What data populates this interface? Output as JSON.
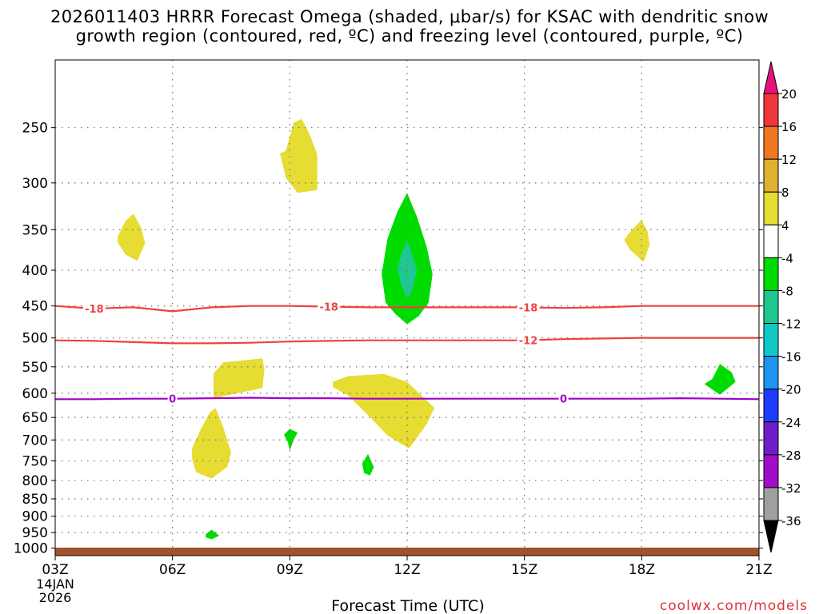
{
  "chart_data": {
    "type": "contour",
    "title_line1": "2026011403 HRRR Forecast Omega (shaded, μbar/s) for KSAC with dendritic snow",
    "title_line2": "growth region (contoured, red, ºC) and freezing level (contoured, purple, ºC)",
    "xlabel": "Forecast Time (UTC)",
    "x_ticks": [
      "03Z",
      "06Z",
      "09Z",
      "12Z",
      "15Z",
      "18Z",
      "21Z"
    ],
    "x_tick_hours": [
      3,
      6,
      9,
      12,
      15,
      18,
      21
    ],
    "x_range": [
      3,
      21
    ],
    "start_date": [
      "14JAN",
      "2026"
    ],
    "y_ticks": [
      250,
      300,
      350,
      400,
      450,
      500,
      550,
      600,
      650,
      700,
      750,
      800,
      850,
      900,
      950,
      1000
    ],
    "y_range_hPa": [
      200,
      1025
    ],
    "colorbar": {
      "levels": [
        20,
        16,
        12,
        8,
        4,
        -4,
        -8,
        -12,
        -16,
        -20,
        -24,
        -28,
        -32,
        -36
      ],
      "bins": [
        {
          "range": [
            16,
            20
          ],
          "color": "#f0383c"
        },
        {
          "range": [
            12,
            16
          ],
          "color": "#f07820"
        },
        {
          "range": [
            8,
            12
          ],
          "color": "#e0b030"
        },
        {
          "range": [
            4,
            8
          ],
          "color": "#e6dc32"
        },
        {
          "range": [
            -4,
            4
          ],
          "color": "#ffffff"
        },
        {
          "range": [
            -8,
            -4
          ],
          "color": "#00dc00"
        },
        {
          "range": [
            -12,
            -8
          ],
          "color": "#1ec890"
        },
        {
          "range": [
            -16,
            -12
          ],
          "color": "#10c8c8"
        },
        {
          "range": [
            -20,
            -16
          ],
          "color": "#1e96f0"
        },
        {
          "range": [
            -24,
            -20
          ],
          "color": "#1e3cff"
        },
        {
          "range": [
            -28,
            -24
          ],
          "color": "#6e1ec8"
        },
        {
          "range": [
            -32,
            -28
          ],
          "color": "#a00cc8"
        },
        {
          "range": [
            -36,
            -32
          ],
          "color": "#a0a0a0"
        }
      ],
      "top_arrow_color": "#e6147a",
      "bottom_arrow_color": "#000000"
    },
    "omega_regions": [
      {
        "label": "yellow",
        "color": "#e6dc32",
        "points": [
          [
            8.9,
            270
          ],
          [
            9.1,
            246
          ],
          [
            9.3,
            243
          ],
          [
            9.5,
            255
          ],
          [
            9.7,
            273
          ],
          [
            9.7,
            307
          ],
          [
            9.2,
            310
          ],
          [
            8.9,
            295
          ],
          [
            8.75,
            272
          ]
        ]
      },
      {
        "label": "yellow",
        "color": "#e6dc32",
        "points": [
          [
            4.6,
            358
          ],
          [
            4.8,
            340
          ],
          [
            5.0,
            332
          ],
          [
            5.2,
            348
          ],
          [
            5.3,
            366
          ],
          [
            5.1,
            388
          ],
          [
            4.8,
            380
          ],
          [
            4.6,
            365
          ]
        ]
      },
      {
        "label": "yellow",
        "color": "#e6dc32",
        "points": [
          [
            7.05,
            562
          ],
          [
            7.3,
            542
          ],
          [
            8.3,
            535
          ],
          [
            8.35,
            555
          ],
          [
            8.3,
            590
          ],
          [
            7.05,
            610
          ]
        ]
      },
      {
        "label": "yellow",
        "color": "#e6dc32",
        "points": [
          [
            10.1,
            578
          ],
          [
            10.5,
            567
          ],
          [
            11.4,
            563
          ],
          [
            12.0,
            578
          ],
          [
            12.7,
            630
          ],
          [
            12.5,
            665
          ],
          [
            12.05,
            720
          ],
          [
            11.5,
            690
          ],
          [
            11.0,
            645
          ],
          [
            10.5,
            605
          ],
          [
            10.1,
            588
          ]
        ]
      },
      {
        "label": "yellow",
        "color": "#e6dc32",
        "points": [
          [
            6.5,
            720
          ],
          [
            6.7,
            680
          ],
          [
            6.95,
            640
          ],
          [
            7.1,
            630
          ],
          [
            7.3,
            672
          ],
          [
            7.5,
            730
          ],
          [
            7.4,
            765
          ],
          [
            7.0,
            795
          ],
          [
            6.6,
            778
          ],
          [
            6.5,
            745
          ]
        ]
      },
      {
        "label": "yellow",
        "color": "#e6dc32",
        "points": [
          [
            18.0,
            339
          ],
          [
            18.15,
            352
          ],
          [
            18.2,
            368
          ],
          [
            18.05,
            389
          ],
          [
            17.7,
            374
          ],
          [
            17.55,
            362
          ],
          [
            17.75,
            350
          ]
        ]
      },
      {
        "label": "green",
        "color": "#00dc00",
        "points": [
          [
            12.0,
            310
          ],
          [
            12.25,
            335
          ],
          [
            12.5,
            370
          ],
          [
            12.65,
            405
          ],
          [
            12.55,
            445
          ],
          [
            12.3,
            465
          ],
          [
            12.0,
            478
          ],
          [
            11.7,
            462
          ],
          [
            11.45,
            445
          ],
          [
            11.35,
            405
          ],
          [
            11.5,
            360
          ],
          [
            11.75,
            330
          ]
        ]
      },
      {
        "label": "teal",
        "color": "#1ec890",
        "points": [
          [
            12.0,
            362
          ],
          [
            12.15,
            382
          ],
          [
            12.25,
            400
          ],
          [
            12.15,
            425
          ],
          [
            12.0,
            440
          ],
          [
            11.85,
            420
          ],
          [
            11.75,
            398
          ],
          [
            11.85,
            380
          ]
        ]
      },
      {
        "label": "green",
        "color": "#00dc00",
        "points": [
          [
            19.8,
            573
          ],
          [
            20.0,
            545
          ],
          [
            20.3,
            560
          ],
          [
            20.4,
            578
          ],
          [
            20.0,
            603
          ],
          [
            19.6,
            582
          ]
        ]
      },
      {
        "label": "green",
        "color": "#00dc00",
        "points": [
          [
            8.85,
            688
          ],
          [
            9.0,
            675
          ],
          [
            9.2,
            683
          ],
          [
            9.1,
            700
          ],
          [
            9.0,
            725
          ],
          [
            8.95,
            705
          ]
        ]
      },
      {
        "label": "green",
        "color": "#00dc00",
        "points": [
          [
            10.85,
            757
          ],
          [
            11.0,
            733
          ],
          [
            11.15,
            766
          ],
          [
            11.05,
            787
          ],
          [
            10.9,
            781
          ]
        ]
      },
      {
        "label": "green",
        "color": "#00dc00",
        "points": [
          [
            6.85,
            955
          ],
          [
            7.0,
            941
          ],
          [
            7.2,
            960
          ],
          [
            7.0,
            971
          ],
          [
            6.85,
            965
          ]
        ]
      }
    ],
    "temperature_contours": [
      {
        "label": "-18",
        "color": "#f04040",
        "x": [
          3,
          4,
          5,
          6,
          7,
          8,
          9,
          10,
          11,
          12,
          13,
          14,
          15,
          16,
          17,
          18,
          19,
          20,
          21
        ],
        "y": [
          450,
          454,
          452,
          458,
          452,
          450,
          450,
          451,
          452,
          452,
          452,
          452,
          452,
          453,
          452,
          450,
          450,
          450,
          450
        ],
        "label_x": [
          4.0,
          10.0,
          15.1
        ]
      },
      {
        "label": "-12",
        "color": "#f04040",
        "x": [
          3,
          4,
          5,
          6,
          7,
          8,
          9,
          10,
          11,
          12,
          13,
          14,
          15,
          16,
          17,
          18,
          19,
          20,
          21
        ],
        "y": [
          504,
          505,
          507,
          509,
          509,
          508,
          506,
          505,
          504,
          504,
          504,
          504,
          504,
          502,
          501,
          500,
          500,
          500,
          500
        ],
        "label_x": [
          15.1
        ]
      },
      {
        "label": "0",
        "color": "#a000c8",
        "x": [
          3,
          4,
          5,
          6,
          7,
          8,
          9,
          10,
          11,
          12,
          13,
          14,
          15,
          16,
          17,
          18,
          19,
          20,
          21
        ],
        "y": [
          612,
          612,
          611,
          611,
          610,
          609,
          610,
          610,
          611,
          611,
          611,
          611,
          611,
          611,
          611,
          611,
          610,
          611,
          612
        ],
        "label_x": [
          6.0,
          16.0
        ]
      }
    ]
  },
  "credit": "coolwx.com/models"
}
